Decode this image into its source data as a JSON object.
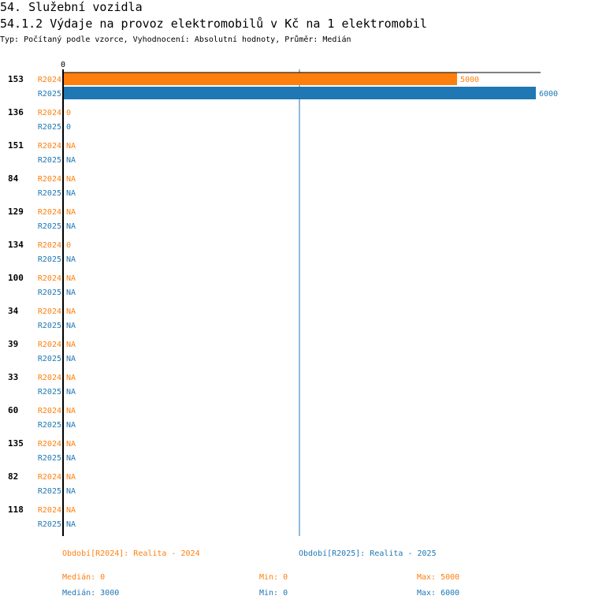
{
  "header": {
    "title": "54. Služební vozidla",
    "subtitle": "54.1.2 Výdaje na provoz elektromobilů v Kč na 1 elektromobil",
    "type_line": "Typ: Počítaný podle vzorce, Vyhodnocení: Absolutní hodnoty, Průměr: Medián"
  },
  "colors": {
    "R2024": "#ff7f0e",
    "R2025": "#1f77b4",
    "axis": "#000000"
  },
  "chart_data": {
    "type": "bar",
    "orientation": "horizontal",
    "xlim": [
      0,
      6000
    ],
    "x_ticks": [
      "0"
    ],
    "median_line": 3000,
    "categories": [
      "153",
      "136",
      "151",
      "84",
      "129",
      "134",
      "100",
      "34",
      "39",
      "33",
      "60",
      "135",
      "82",
      "118"
    ],
    "series": [
      {
        "name": "R2024",
        "values": [
          5000,
          0,
          null,
          null,
          null,
          0,
          null,
          null,
          null,
          null,
          null,
          null,
          null,
          null
        ],
        "labels": [
          "5000",
          "0",
          "NA",
          "NA",
          "NA",
          "0",
          "NA",
          "NA",
          "NA",
          "NA",
          "NA",
          "NA",
          "NA",
          "NA"
        ]
      },
      {
        "name": "R2025",
        "values": [
          6000,
          0,
          null,
          null,
          null,
          null,
          null,
          null,
          null,
          null,
          null,
          null,
          null,
          null
        ],
        "labels": [
          "6000",
          "0",
          "NA",
          "NA",
          "NA",
          "NA",
          "NA",
          "NA",
          "NA",
          "NA",
          "NA",
          "NA",
          "NA",
          "NA"
        ]
      }
    ]
  },
  "legend": {
    "r2024": "Období[R2024]: Realita - 2024",
    "r2025": "Období[R2025]: Realita - 2025"
  },
  "stats": {
    "r2024": {
      "median": "Medián: 0",
      "min": "Min: 0",
      "max": "Max: 5000"
    },
    "r2025": {
      "median": "Medián: 3000",
      "min": "Min: 0",
      "max": "Max: 6000"
    }
  }
}
